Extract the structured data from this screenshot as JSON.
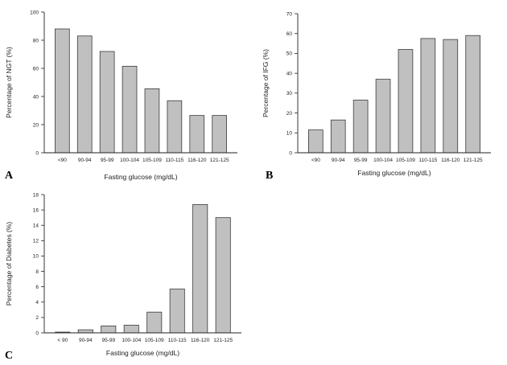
{
  "chart_data": [
    {
      "type": "bar",
      "panel_label": "A",
      "categories": [
        "<90",
        "90-94",
        "95-99",
        "100-104",
        "105-109",
        "110-115",
        "116-120",
        "121-125"
      ],
      "values": [
        88,
        83,
        72,
        61.5,
        45.5,
        37,
        26.5,
        26.5
      ],
      "title": "",
      "xlabel": "Fasting glucose (mg/dL)",
      "ylabel": "Percentage of NGT (%)",
      "ylim": [
        0,
        100
      ],
      "yticks": [
        0,
        20,
        40,
        60,
        80,
        100
      ],
      "grid": false
    },
    {
      "type": "bar",
      "panel_label": "B",
      "categories": [
        "<90",
        "90-94",
        "95-99",
        "100-104",
        "105-109",
        "110-115",
        "116-120",
        "121-125"
      ],
      "values": [
        11.5,
        16.5,
        26.5,
        37,
        52,
        57.5,
        57,
        59
      ],
      "title": "",
      "xlabel": "Fasting glucose (mg/dL)",
      "ylabel": "Percentage of IFG (%)",
      "ylim": [
        0,
        70
      ],
      "yticks": [
        0,
        10,
        20,
        30,
        40,
        50,
        60,
        70
      ],
      "grid": false
    },
    {
      "type": "bar",
      "panel_label": "C",
      "categories": [
        "< 90",
        "90-94",
        "95-99",
        "100-104",
        "105-109",
        "110-115",
        "116-120",
        "121-125"
      ],
      "values": [
        0.1,
        0.4,
        0.9,
        1.0,
        2.7,
        5.7,
        16.7,
        15.0
      ],
      "title": "",
      "xlabel": "Fasting glucose (mg/dL)",
      "ylabel": "Percentage of Diabetes (%)",
      "ylim": [
        0,
        18
      ],
      "yticks": [
        0,
        2,
        4,
        6,
        8,
        10,
        12,
        14,
        16,
        18
      ],
      "grid": false
    }
  ]
}
